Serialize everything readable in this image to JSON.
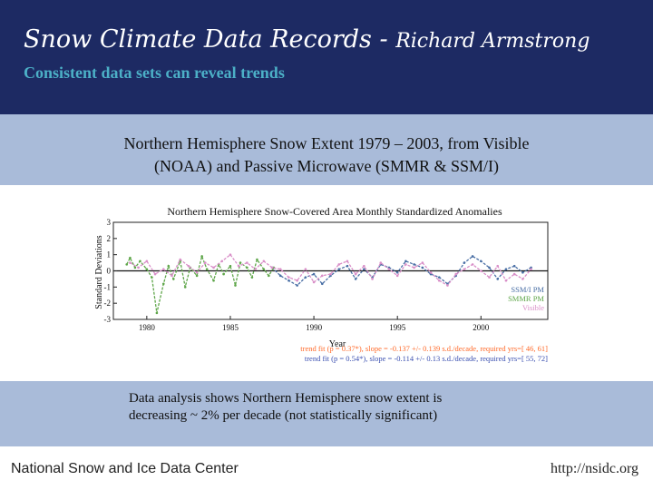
{
  "slide": {
    "title": "Snow Climate Data Records -",
    "author": "Richard Armstrong",
    "subtitle": "Consistent data sets can reveal trends",
    "band_line1": "Northern Hemisphere Snow Extent 1979 – 2003, from Visible",
    "band_line2": "(NOAA) and Passive Microwave (SMMR & SSM/I)",
    "caption_line1": "Data analysis shows Northern Hemisphere snow extent is",
    "caption_line2": "decreasing ~ 2% per decade (not statistically significant)",
    "footer_left": "National Snow and Ice Data Center",
    "footer_right": "http://nsidc.org"
  },
  "colors": {
    "header_bg": "#1d2a63",
    "subtitle": "#4cb0c7",
    "band_bg": "#a9bbd9",
    "visible_series": "#d98fc8",
    "ssmr_ssmi_series": "#4a6fa5",
    "smmr_series": "#5fa64a"
  },
  "chart_data": {
    "type": "line",
    "title": "Northern Hemisphere Snow-Covered Area Monthly Standardized Anomalies",
    "xlabel": "Year",
    "ylabel": "Standard Deviations",
    "xlim": [
      1978,
      2004
    ],
    "ylim": [
      -3,
      3
    ],
    "xticks": [
      1980,
      1985,
      1990,
      1995,
      2000
    ],
    "yticks": [
      -3,
      -2,
      -1,
      0,
      1,
      2,
      3
    ],
    "legend_position": "bottom-right",
    "series": [
      {
        "name": "SSM/I PM",
        "color": "#4a6fa5",
        "x": [
          1987.5,
          1988,
          1988.5,
          1989,
          1989.5,
          1990,
          1990.5,
          1991,
          1991.5,
          1992,
          1992.5,
          1993,
          1993.5,
          1994,
          1994.5,
          1995,
          1995.5,
          1996,
          1996.5,
          1997,
          1997.5,
          1998,
          1998.5,
          1999,
          1999.5,
          2000,
          2000.5,
          2001,
          2001.5,
          2002,
          2002.5,
          2003
        ],
        "y": [
          0.2,
          -0.3,
          -0.6,
          -0.9,
          -0.4,
          -0.2,
          -0.8,
          -0.3,
          0.1,
          0.3,
          -0.5,
          0.1,
          -0.4,
          0.4,
          0.2,
          -0.1,
          0.6,
          0.4,
          0.2,
          -0.2,
          -0.4,
          -0.8,
          -0.3,
          0.5,
          0.9,
          0.6,
          0.2,
          -0.5,
          0.1,
          0.3,
          -0.1,
          0.2
        ]
      },
      {
        "name": "SMMR PM",
        "color": "#5fa64a",
        "x": [
          1978.8,
          1979,
          1979.3,
          1979.6,
          1980,
          1980.3,
          1980.6,
          1981,
          1981.3,
          1981.6,
          1982,
          1982.3,
          1982.6,
          1983,
          1983.3,
          1983.6,
          1984,
          1984.3,
          1984.6,
          1985,
          1985.3,
          1985.6,
          1986,
          1986.3,
          1986.6,
          1987,
          1987.3,
          1987.6
        ],
        "y": [
          0.4,
          0.8,
          0.2,
          0.6,
          0.1,
          -0.4,
          -2.6,
          -0.8,
          0.3,
          -0.5,
          0.6,
          -1.0,
          0.2,
          -0.3,
          0.9,
          0.1,
          -0.6,
          0.4,
          -0.2,
          0.3,
          -0.9,
          0.5,
          0.2,
          -0.4,
          0.7,
          0.1,
          -0.3,
          0.2
        ]
      },
      {
        "name": "Visible",
        "color": "#d98fc8",
        "x": [
          1979,
          1979.5,
          1980,
          1980.5,
          1981,
          1981.5,
          1982,
          1982.5,
          1983,
          1983.5,
          1984,
          1984.5,
          1985,
          1985.5,
          1986,
          1986.5,
          1987,
          1987.5,
          1988,
          1988.5,
          1989,
          1989.5,
          1990,
          1990.5,
          1991,
          1991.5,
          1992,
          1992.5,
          1993,
          1993.5,
          1994,
          1994.5,
          1995,
          1995.5,
          1996,
          1996.5,
          1997,
          1997.5,
          1998,
          1998.5,
          1999,
          1999.5,
          2000,
          2000.5,
          2001,
          2001.5,
          2002,
          2002.5,
          2003
        ],
        "y": [
          0.5,
          0.2,
          0.6,
          -0.2,
          0.1,
          -0.3,
          0.7,
          0.3,
          -0.1,
          0.5,
          0.2,
          0.6,
          1.0,
          0.3,
          0.5,
          0.1,
          0.6,
          0.2,
          0.1,
          -0.4,
          -0.6,
          0.1,
          -0.7,
          -0.3,
          -0.2,
          0.4,
          0.6,
          -0.2,
          0.3,
          -0.5,
          0.5,
          0.1,
          -0.3,
          0.4,
          0.2,
          0.5,
          -0.1,
          -0.6,
          -0.9,
          -0.2,
          0.1,
          0.4,
          0.0,
          -0.4,
          0.3,
          -0.6,
          -0.2,
          -0.5,
          0.1
        ]
      }
    ],
    "annotations": [
      "trend fit (p = 0.37*), slope = -0.137 +/- 0.139 s.d./decade, required yrs=[ 46, 61]",
      "trend fit (p = 0.54*), slope = -0.114 +/- 0.13 s.d./decade, required yrs=[ 55, 72]"
    ]
  }
}
